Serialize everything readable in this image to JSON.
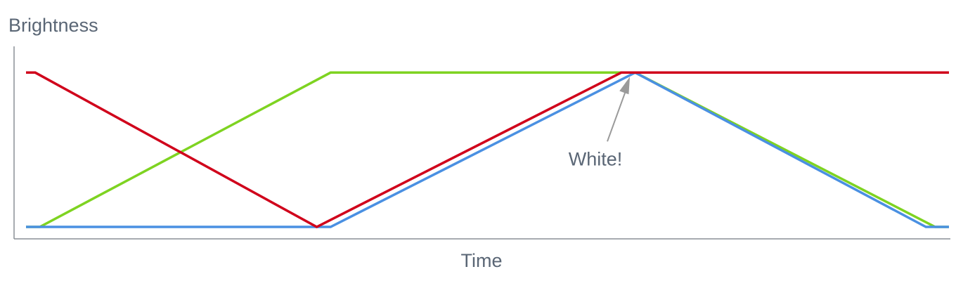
{
  "chart_data": {
    "type": "line",
    "xlabel": "Time",
    "ylabel": "Brightness",
    "xlim": [
      0,
      1
    ],
    "ylim": [
      0,
      1.17
    ],
    "grid": false,
    "legend": "none",
    "series": [
      {
        "color": "#7ed321",
        "x": [
          0,
          0.015,
          0.33,
          0.645,
          0.66,
          0.985,
          1
        ],
        "y": [
          0,
          0,
          1,
          1,
          1,
          0,
          0
        ]
      },
      {
        "color": "#4a90e2",
        "x": [
          0,
          0.33,
          0.66,
          0.975,
          1
        ],
        "y": [
          0,
          0,
          1,
          0,
          0
        ]
      },
      {
        "color": "#d0021b",
        "x": [
          0,
          0.01,
          0.315,
          0.645,
          1
        ],
        "y": [
          1,
          1,
          0,
          1,
          1
        ]
      }
    ],
    "annotations": [
      {
        "text": "White!",
        "x": 0.655,
        "y": 1
      }
    ]
  }
}
